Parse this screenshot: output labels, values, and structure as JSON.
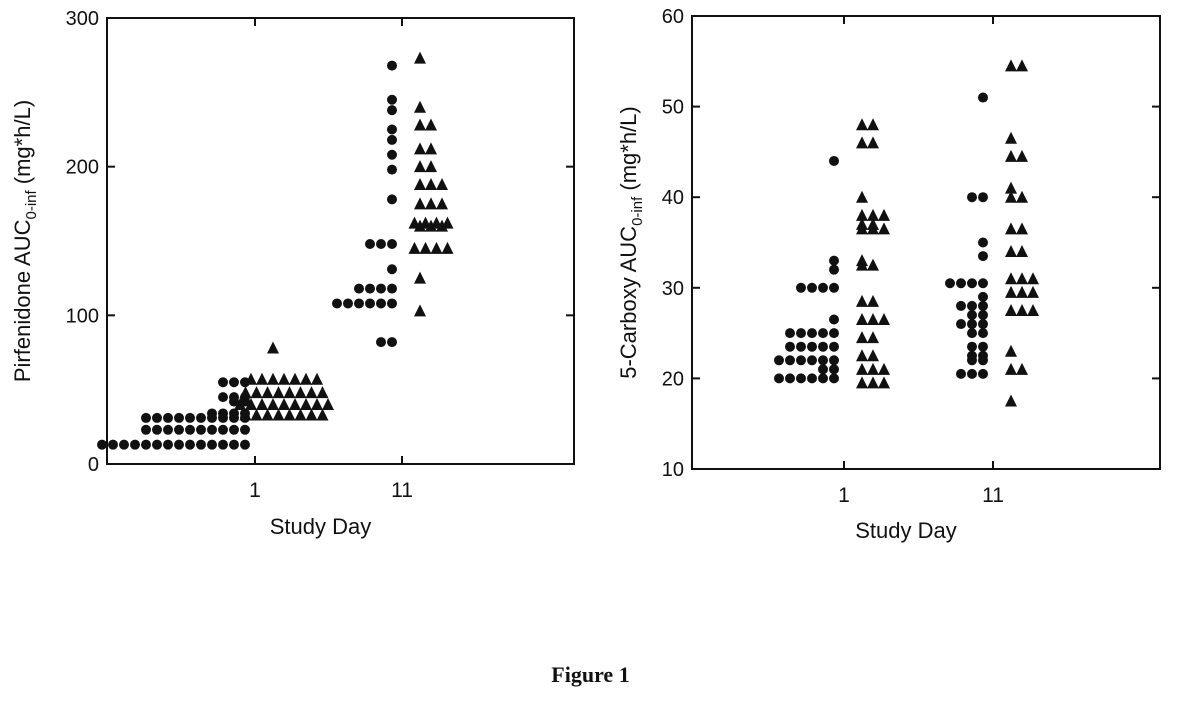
{
  "figure_caption": "Figure 1",
  "chart_data": [
    {
      "type": "scatter",
      "xlabel": "Study Day",
      "ylabel_main": "Pirfenidone AUC",
      "ylabel_sub": "0-inf",
      "ylabel_unit": "(mg*h/L)",
      "ylim": [
        0,
        300
      ],
      "yticks": [
        0,
        100,
        200,
        300
      ],
      "categories": [
        "1",
        "11"
      ],
      "grid": false,
      "series": [
        {
          "marker": "circle",
          "points": [
            {
              "x": "1",
              "y": [
                13,
                13,
                13,
                13,
                13,
                13,
                13,
                13,
                13,
                13,
                13,
                13,
                13,
                13,
                23,
                23,
                23,
                23,
                23,
                23,
                23,
                23,
                23,
                23,
                31,
                31,
                31,
                31,
                31,
                31,
                31,
                31,
                31,
                31,
                34,
                34,
                34,
                34,
                42,
                42,
                45,
                45,
                45,
                55,
                55,
                55
              ]
            },
            {
              "x": "11",
              "y": [
                268,
                245,
                238,
                225,
                218,
                208,
                198,
                178,
                148,
                148,
                148,
                131,
                118,
                118,
                118,
                118,
                108,
                108,
                108,
                108,
                108,
                108,
                82,
                82
              ]
            }
          ]
        },
        {
          "marker": "triangle",
          "points": [
            {
              "x": "1",
              "y": [
                78,
                57,
                57,
                57,
                57,
                57,
                57,
                57,
                48,
                48,
                48,
                48,
                48,
                48,
                48,
                48,
                40,
                40,
                40,
                40,
                40,
                40,
                40,
                40,
                40,
                33,
                33,
                33,
                33,
                33,
                33,
                33,
                33
              ]
            },
            {
              "x": "11",
              "y": [
                273,
                240,
                228,
                228,
                212,
                212,
                200,
                200,
                188,
                188,
                188,
                175,
                175,
                175,
                162,
                162,
                162,
                162,
                160,
                160,
                160,
                145,
                145,
                145,
                145,
                125,
                103
              ]
            }
          ]
        }
      ]
    },
    {
      "type": "scatter",
      "xlabel": "Study Day",
      "ylabel_main": "5-Carboxy AUC",
      "ylabel_sub": "0-inf",
      "ylabel_unit": "(mg*h/L)",
      "ylim": [
        10,
        60
      ],
      "yticks": [
        10,
        20,
        30,
        40,
        50,
        60
      ],
      "categories": [
        "1",
        "11"
      ],
      "grid": false,
      "series": [
        {
          "marker": "circle",
          "points": [
            {
              "x": "1",
              "y": [
                44,
                33,
                32,
                30,
                30,
                30,
                30,
                26.5,
                25,
                25,
                25,
                25,
                25,
                23.5,
                23.5,
                23.5,
                23.5,
                23.5,
                22,
                22,
                22,
                22,
                22,
                22,
                21,
                21,
                20,
                20,
                20,
                20,
                20,
                20
              ]
            },
            {
              "x": "11",
              "y": [
                51,
                40,
                40,
                35,
                33.5,
                30.5,
                30.5,
                30.5,
                30.5,
                29,
                28,
                28,
                28,
                27,
                27,
                26,
                26,
                26,
                25,
                25,
                23.5,
                23.5,
                22.5,
                22.5,
                22,
                22,
                20.5,
                20.5,
                20.5
              ]
            }
          ]
        },
        {
          "marker": "triangle",
          "points": [
            {
              "x": "1",
              "y": [
                48,
                48,
                46,
                46,
                40,
                38,
                38,
                38,
                37,
                37,
                36.5,
                36.5,
                36.5,
                33,
                32.5,
                32.5,
                28.5,
                28.5,
                26.5,
                26.5,
                26.5,
                24.5,
                24.5,
                22.5,
                22.5,
                21,
                21,
                21,
                19.5,
                19.5,
                19.5
              ]
            },
            {
              "x": "11",
              "y": [
                54.5,
                54.5,
                46.5,
                44.5,
                44.5,
                41,
                40,
                40,
                36.5,
                36.5,
                34,
                34,
                31,
                31,
                31,
                29.5,
                29.5,
                29.5,
                27.5,
                27.5,
                27.5,
                23,
                21,
                21,
                17.5
              ]
            }
          ]
        }
      ]
    }
  ]
}
